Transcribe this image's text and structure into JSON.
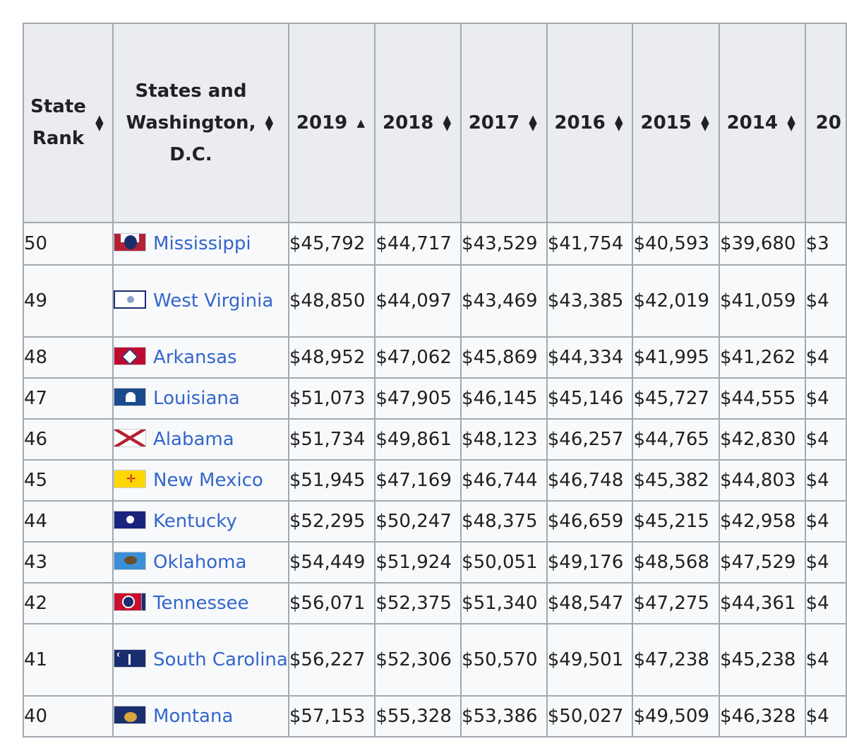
{
  "table": {
    "headers": [
      {
        "lines": [
          "State",
          "Rank"
        ],
        "sort": "both"
      },
      {
        "lines": [
          "States and",
          "Washington,",
          "D.C."
        ],
        "sort": "both"
      },
      {
        "lines": [
          "2019"
        ],
        "sort": "asc"
      },
      {
        "lines": [
          "2018"
        ],
        "sort": "both"
      },
      {
        "lines": [
          "2017"
        ],
        "sort": "both"
      },
      {
        "lines": [
          "2016"
        ],
        "sort": "both"
      },
      {
        "lines": [
          "2015"
        ],
        "sort": "both"
      },
      {
        "lines": [
          "2014"
        ],
        "sort": "both"
      },
      {
        "lines": [
          "20"
        ],
        "sort": "none"
      }
    ],
    "rows": [
      {
        "rank": "50",
        "state": "Mississippi",
        "flag": "ms",
        "tall": false,
        "values": [
          "$45,792",
          "$44,717",
          "$43,529",
          "$41,754",
          "$40,593",
          "$39,680",
          "$3"
        ]
      },
      {
        "rank": "49",
        "state": "West Virginia",
        "flag": "wv",
        "tall": true,
        "values": [
          "$48,850",
          "$44,097",
          "$43,469",
          "$43,385",
          "$42,019",
          "$41,059",
          "$4"
        ]
      },
      {
        "rank": "48",
        "state": "Arkansas",
        "flag": "ar",
        "tall": false,
        "values": [
          "$48,952",
          "$47,062",
          "$45,869",
          "$44,334",
          "$41,995",
          "$41,262",
          "$4"
        ]
      },
      {
        "rank": "47",
        "state": "Louisiana",
        "flag": "la",
        "tall": false,
        "values": [
          "$51,073",
          "$47,905",
          "$46,145",
          "$45,146",
          "$45,727",
          "$44,555",
          "$4"
        ]
      },
      {
        "rank": "46",
        "state": "Alabama",
        "flag": "al",
        "tall": false,
        "values": [
          "$51,734",
          "$49,861",
          "$48,123",
          "$46,257",
          "$44,765",
          "$42,830",
          "$4"
        ]
      },
      {
        "rank": "45",
        "state": "New Mexico",
        "flag": "nm",
        "tall": false,
        "values": [
          "$51,945",
          "$47,169",
          "$46,744",
          "$46,748",
          "$45,382",
          "$44,803",
          "$4"
        ]
      },
      {
        "rank": "44",
        "state": "Kentucky",
        "flag": "ky",
        "tall": false,
        "values": [
          "$52,295",
          "$50,247",
          "$48,375",
          "$46,659",
          "$45,215",
          "$42,958",
          "$4"
        ]
      },
      {
        "rank": "43",
        "state": "Oklahoma",
        "flag": "ok",
        "tall": false,
        "values": [
          "$54,449",
          "$51,924",
          "$50,051",
          "$49,176",
          "$48,568",
          "$47,529",
          "$4"
        ]
      },
      {
        "rank": "42",
        "state": "Tennessee",
        "flag": "tn",
        "tall": false,
        "values": [
          "$56,071",
          "$52,375",
          "$51,340",
          "$48,547",
          "$47,275",
          "$44,361",
          "$4"
        ]
      },
      {
        "rank": "41",
        "state": "South Carolina",
        "flag": "sc",
        "tall": true,
        "values": [
          "$56,227",
          "$52,306",
          "$50,570",
          "$49,501",
          "$47,238",
          "$45,238",
          "$4"
        ]
      },
      {
        "rank": "40",
        "state": "Montana",
        "flag": "mt",
        "tall": false,
        "values": [
          "$57,153",
          "$55,328",
          "$53,386",
          "$50,027",
          "$49,509",
          "$46,328",
          "$4"
        ]
      }
    ]
  }
}
